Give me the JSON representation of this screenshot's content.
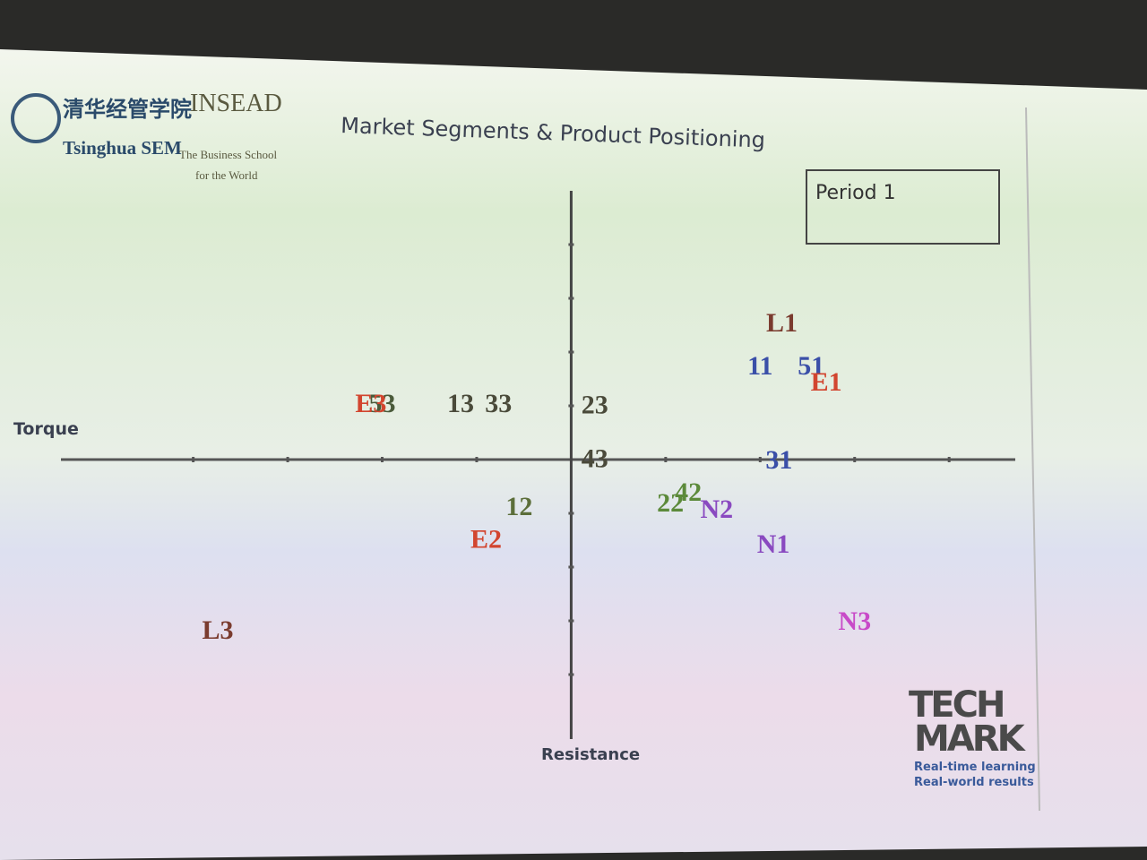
{
  "chart_data": {
    "type": "scatter",
    "title": "Market Segments &  Product Positioning",
    "x_label": "Torque",
    "y_label": "Resistance",
    "period_label": "Period 1",
    "xlim": [
      -5.4,
      4.7
    ],
    "ylim": [
      -5.2,
      5.0
    ],
    "xticks": [
      -4,
      -3,
      -2,
      -1,
      1,
      2,
      3,
      4
    ],
    "yticks": [
      -4,
      -3,
      -2,
      -1,
      1,
      2,
      3,
      4
    ],
    "points": [
      {
        "label": "L1",
        "color": "#7a3b2e",
        "x": 2.23,
        "y": 2.5
      },
      {
        "label": "11",
        "color": "#3a4fa8",
        "x": 2.0,
        "y": 1.7
      },
      {
        "label": "51",
        "color": "#3a4fa8",
        "x": 2.54,
        "y": 1.7
      },
      {
        "label": "E1",
        "color": "#d2452f",
        "x": 2.7,
        "y": 1.4
      },
      {
        "label": "53",
        "color": "#4a5a3a",
        "x": -2.0,
        "y": 1.0
      },
      {
        "label": "E3",
        "color": "#d2452f",
        "x": -2.12,
        "y": 1.0
      },
      {
        "label": "13",
        "color": "#4a4a3a",
        "x": -1.17,
        "y": 1.0
      },
      {
        "label": "33",
        "color": "#4a4a3a",
        "x": -0.77,
        "y": 1.0
      },
      {
        "label": "23",
        "color": "#4a4a3a",
        "x": 0.25,
        "y": 0.97
      },
      {
        "label": "43",
        "color": "#4a4a3a",
        "x": 0.25,
        "y": -0.03
      },
      {
        "label": "31",
        "color": "#3a4fa8",
        "x": 2.2,
        "y": -0.05
      },
      {
        "label": "12",
        "color": "#5c6e3a",
        "x": -0.55,
        "y": -0.92
      },
      {
        "label": "22",
        "color": "#5c8a3a",
        "x": 1.05,
        "y": -0.85
      },
      {
        "label": "42",
        "color": "#5c8a3a",
        "x": 1.24,
        "y": -0.65
      },
      {
        "label": "N2",
        "color": "#8a4ac0",
        "x": 1.54,
        "y": -0.97
      },
      {
        "label": "E2",
        "color": "#d2452f",
        "x": -0.9,
        "y": -1.53
      },
      {
        "label": "N1",
        "color": "#8a4ac0",
        "x": 2.14,
        "y": -1.62
      },
      {
        "label": "N3",
        "color": "#c84ac8",
        "x": 3.0,
        "y": -3.05
      },
      {
        "label": "L3",
        "color": "#7a3b2e",
        "x": -3.74,
        "y": -3.22
      }
    ]
  },
  "logos": {
    "tsinghua_cn": "清华经管学院",
    "tsinghua_en": "Tsinghua SEM",
    "insead": "INSEAD",
    "insead_tag_1": "The Business School",
    "insead_tag_2": "for the World",
    "techmark_1": "TECH",
    "techmark_2": "MARK",
    "techmark_tag_1": "Real-time learning",
    "techmark_tag_2": "Real-world results"
  }
}
